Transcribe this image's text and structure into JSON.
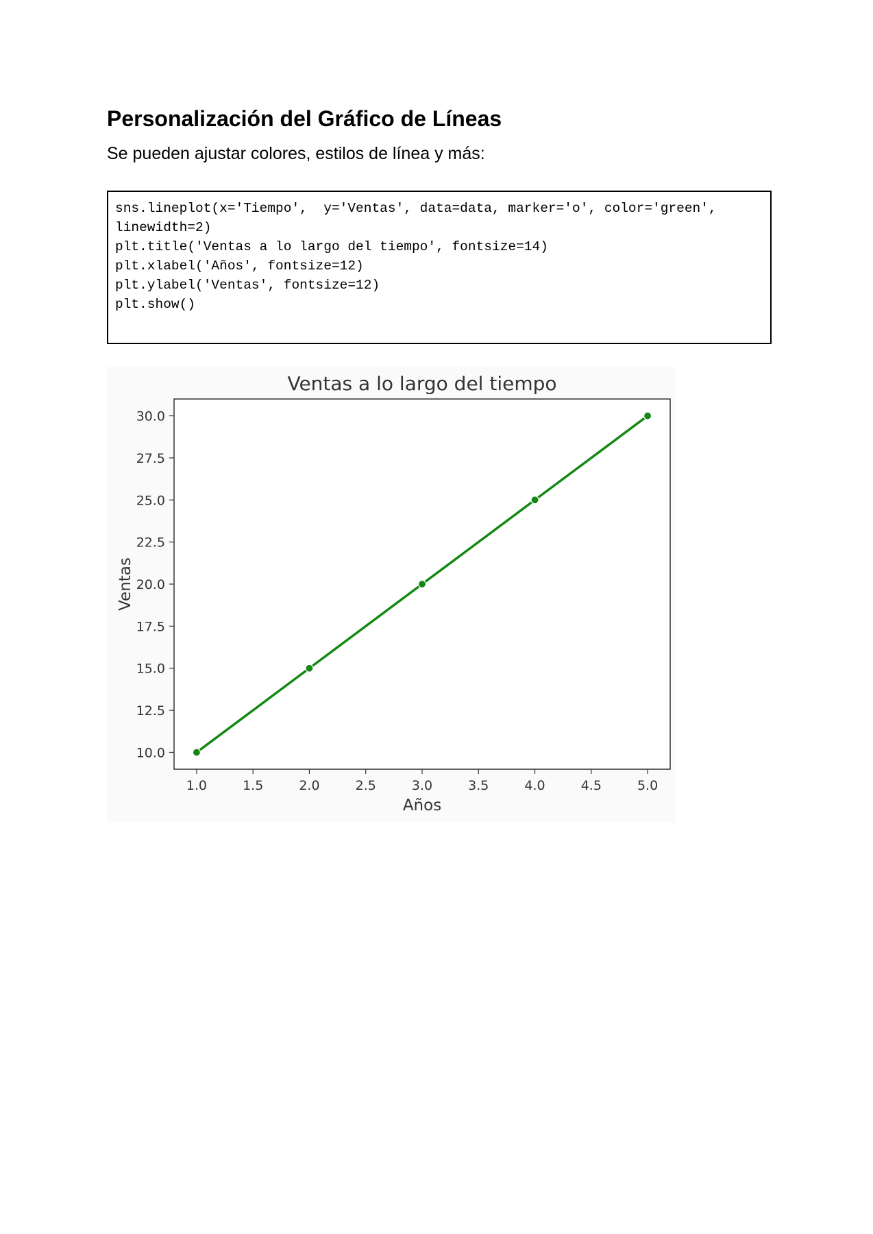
{
  "heading": "Personalización del Gráfico de Líneas",
  "subtitle": "Se pueden ajustar colores, estilos de línea y más:",
  "code_lines": [
    "sns.lineplot(x='Tiempo',  y='Ventas', data=data, marker='o', color='green',",
    "linewidth=2)",
    "plt.title('Ventas a lo largo del tiempo', fontsize=14)",
    "plt.xlabel('Años', fontsize=12)",
    "plt.ylabel('Ventas', fontsize=12)",
    "plt.show()"
  ],
  "chart_data": {
    "type": "line",
    "title": "Ventas a lo largo del tiempo",
    "xlabel": "Años",
    "ylabel": "Ventas",
    "x": [
      1.0,
      2.0,
      3.0,
      4.0,
      5.0
    ],
    "series": [
      {
        "values": [
          10.0,
          15.0,
          20.0,
          25.0,
          30.0
        ],
        "color": "#138913",
        "marker": "circle"
      }
    ],
    "xticks": [
      "1.0",
      "1.5",
      "2.0",
      "2.5",
      "3.0",
      "3.5",
      "4.0",
      "4.5",
      "5.0"
    ],
    "yticks": [
      "10.0",
      "12.5",
      "15.0",
      "17.5",
      "20.0",
      "22.5",
      "25.0",
      "27.5",
      "30.0"
    ],
    "xlim": [
      0.8,
      5.2
    ],
    "ylim": [
      9.0,
      31.0
    ],
    "grid": false,
    "legend": "none"
  }
}
